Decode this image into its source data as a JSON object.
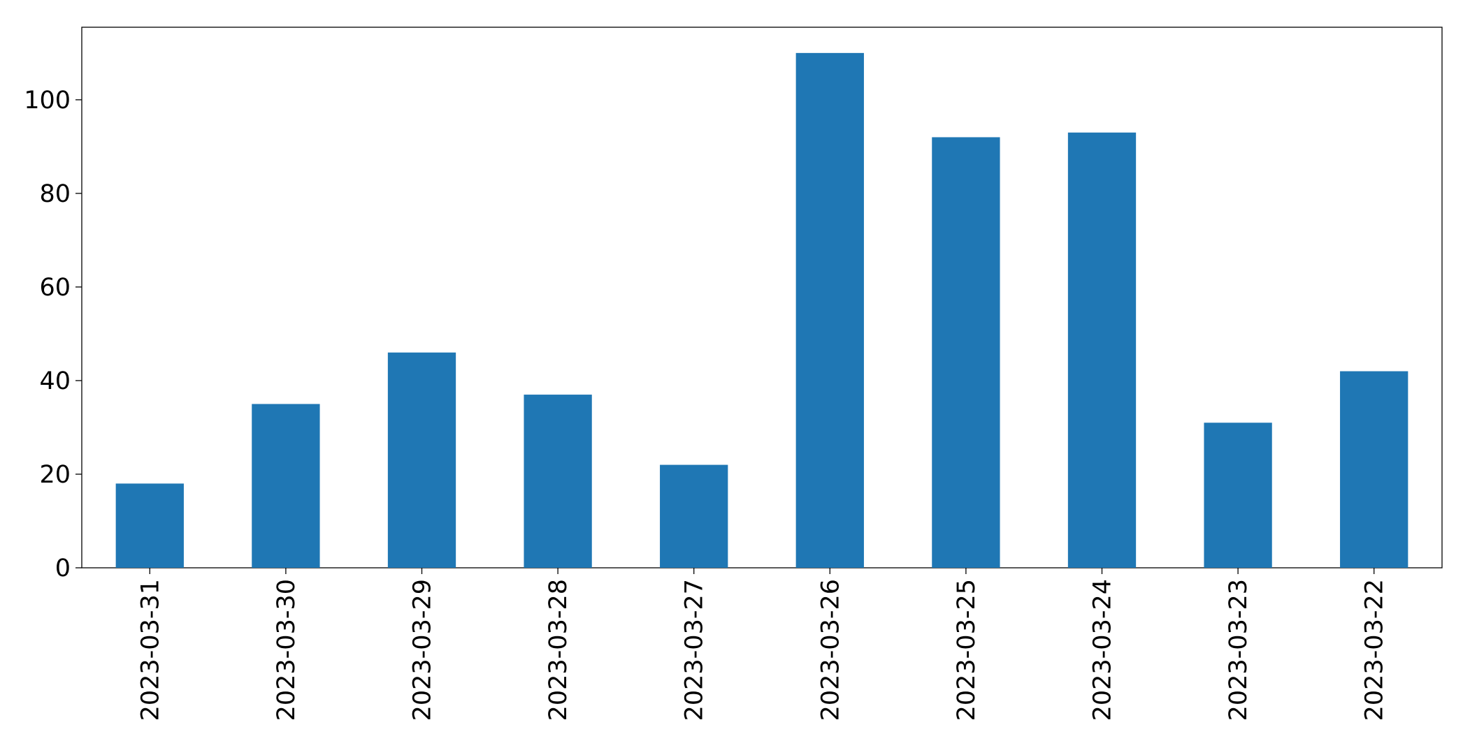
{
  "chart_data": {
    "type": "bar",
    "categories": [
      "2023-03-31",
      "2023-03-30",
      "2023-03-29",
      "2023-03-28",
      "2023-03-27",
      "2023-03-26",
      "2023-03-25",
      "2023-03-24",
      "2023-03-23",
      "2023-03-22"
    ],
    "values": [
      18,
      35,
      46,
      37,
      22,
      110,
      92,
      93,
      31,
      42
    ],
    "color": "#1f77b4",
    "ylim": [
      0,
      115.5
    ],
    "yticks": [
      0,
      20,
      40,
      60,
      80,
      100
    ],
    "grid": false
  }
}
